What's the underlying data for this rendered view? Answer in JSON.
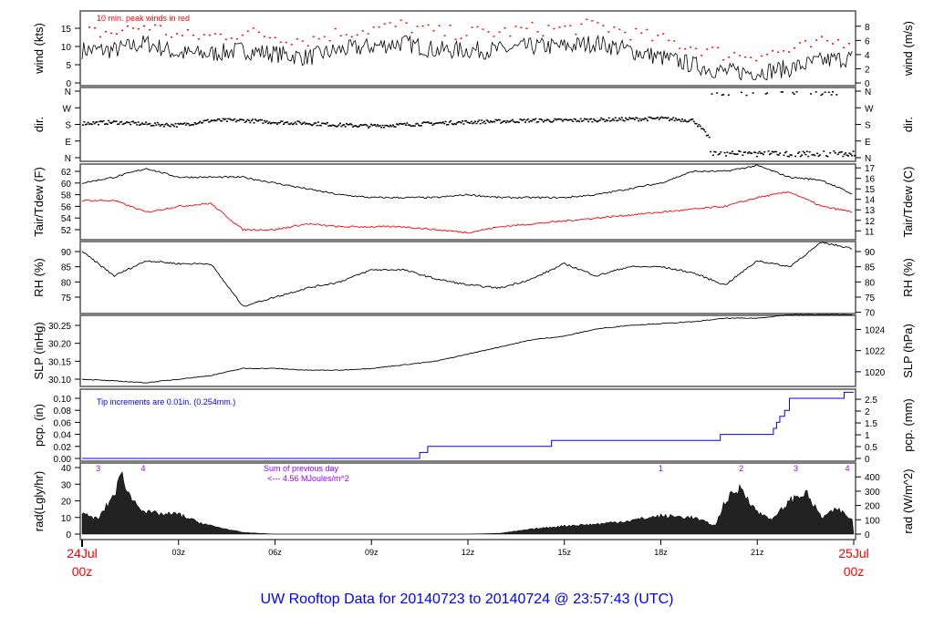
{
  "title": "UW Rooftop Data for 20140723  to  20140724 @ 23:57:43  (UTC)",
  "chart_data": [
    {
      "type": "line",
      "name": "wind",
      "ylabel": "wind (kts)",
      "ylabel_right": "wind (m/s)",
      "annotation": "10 min. peak winds in red",
      "ylim": [
        0,
        15
      ],
      "left_ticks": [
        0,
        5,
        10,
        15
      ],
      "right_ticks": [
        0,
        2,
        4,
        6,
        8
      ],
      "hours": [
        0,
        1,
        2,
        3,
        4,
        5,
        6,
        7,
        8,
        9,
        10,
        11,
        12,
        13,
        14,
        15,
        16,
        17,
        18,
        19,
        20,
        21,
        22,
        23,
        24
      ],
      "values": [
        9,
        9,
        11,
        8,
        8,
        9,
        8,
        7,
        9,
        10,
        11,
        9,
        9,
        9,
        10,
        10,
        11,
        9,
        7,
        5,
        3,
        3,
        4,
        6,
        7
      ],
      "peak_color": "#ff0000",
      "line_color": "#000000"
    },
    {
      "type": "scatter",
      "name": "dir",
      "ylabel": "dir.",
      "ylabel_right": "dir.",
      "ylim": [
        0,
        360
      ],
      "left_ticks": [
        "N",
        "E",
        "S",
        "W",
        "N"
      ],
      "right_ticks": [
        "N",
        "E",
        "S",
        "W",
        "N"
      ],
      "hours": [
        0,
        1,
        2,
        3,
        4,
        5,
        6,
        7,
        8,
        9,
        10,
        11,
        12,
        13,
        14,
        15,
        16,
        17,
        18,
        19,
        20,
        21,
        22,
        23,
        24
      ],
      "values": [
        190,
        195,
        185,
        180,
        205,
        205,
        195,
        190,
        180,
        175,
        182,
        190,
        196,
        200,
        205,
        205,
        208,
        212,
        215,
        205,
        15,
        355,
        25,
        12,
        8
      ]
    },
    {
      "type": "line",
      "name": "temp",
      "ylabel": "Tair/Tdew (F)",
      "ylabel_right": "Tair/Tdew (C)",
      "ylim": [
        52,
        62
      ],
      "left_ticks": [
        52,
        54,
        56,
        58,
        60,
        62
      ],
      "right_ticks": [
        11,
        12,
        13,
        14,
        15,
        16,
        17
      ],
      "hours": [
        0,
        1,
        2,
        3,
        4,
        5,
        6,
        7,
        8,
        9,
        10,
        11,
        12,
        13,
        14,
        15,
        16,
        17,
        18,
        19,
        20,
        21,
        22,
        23,
        24
      ],
      "series": [
        {
          "name": "Tair",
          "color": "#000000",
          "values": [
            60,
            61,
            62.5,
            61,
            61,
            61,
            60,
            59,
            58,
            57.5,
            57.5,
            57.5,
            58,
            57.5,
            57.5,
            57.5,
            58,
            59,
            60,
            62,
            62,
            63,
            61,
            60.5,
            58
          ]
        },
        {
          "name": "Tdew",
          "color": "#ff0000",
          "values": [
            57,
            57,
            55,
            56,
            56.5,
            52,
            52,
            53,
            52.5,
            52.5,
            52.5,
            52,
            51.5,
            52.5,
            53,
            53.5,
            54,
            54.5,
            55,
            55.5,
            56,
            57.5,
            58.5,
            56,
            55
          ]
        }
      ]
    },
    {
      "type": "line",
      "name": "rh",
      "ylabel": "RH (%)",
      "ylabel_right": "RH (%)",
      "ylim": [
        70,
        90
      ],
      "left_ticks": [
        75,
        80,
        85,
        90
      ],
      "right_ticks": [
        70,
        75,
        80,
        85,
        90
      ],
      "hours": [
        0,
        1,
        2,
        3,
        4,
        5,
        6,
        7,
        8,
        9,
        10,
        11,
        12,
        13,
        14,
        15,
        16,
        17,
        18,
        19,
        20,
        21,
        22,
        23,
        24
      ],
      "values": [
        90,
        82,
        87,
        86,
        86,
        72,
        75,
        78,
        80,
        84,
        84,
        81,
        79,
        78,
        81,
        86,
        82,
        85,
        85,
        83,
        79,
        87,
        85,
        93,
        91
      ]
    },
    {
      "type": "line",
      "name": "slp",
      "ylabel": "SLP (inHg)",
      "ylabel_right": "SLP (hPa)",
      "ylim": [
        30.1,
        30.25
      ],
      "left_ticks": [
        "30.10",
        "30.15",
        "30.20",
        "30.25"
      ],
      "right_ticks": [
        1020,
        1022,
        1024
      ],
      "hours": [
        0,
        1,
        2,
        3,
        4,
        5,
        6,
        7,
        8,
        9,
        10,
        11,
        12,
        13,
        14,
        15,
        16,
        17,
        18,
        19,
        20,
        21,
        22,
        23,
        24
      ],
      "values": [
        30.1,
        30.095,
        30.09,
        30.1,
        30.11,
        30.13,
        30.13,
        30.125,
        30.125,
        30.13,
        30.14,
        30.15,
        30.17,
        30.19,
        30.21,
        30.22,
        30.24,
        30.25,
        30.255,
        30.26,
        30.27,
        30.27,
        30.28,
        30.28,
        30.28
      ]
    },
    {
      "type": "line",
      "name": "pcp",
      "ylabel": "pcp. (in)",
      "ylabel_right": "pcp. (mm)",
      "annotation": "Tip increments are 0.01in. (0.254mm.)",
      "ylim": [
        0,
        0.1
      ],
      "left_ticks": [
        "0.00",
        "0.02",
        "0.04",
        "0.06",
        "0.08",
        "0.10"
      ],
      "right_ticks": [
        0,
        0.5,
        1,
        1.5,
        2,
        2.5
      ],
      "steps": [
        [
          0,
          0
        ],
        [
          10.5,
          0.01
        ],
        [
          10.75,
          0.02
        ],
        [
          14.6,
          0.03
        ],
        [
          19.85,
          0.04
        ],
        [
          21.5,
          0.05
        ],
        [
          21.6,
          0.06
        ],
        [
          21.7,
          0.07
        ],
        [
          21.85,
          0.08
        ],
        [
          22.0,
          0.1
        ],
        [
          23.7,
          0.11
        ],
        [
          24,
          0.11
        ]
      ],
      "color": "#0000ff"
    },
    {
      "type": "area",
      "name": "rad",
      "ylabel": "rad(Lgly/hr)",
      "ylabel_right": "rad (W/m^2)",
      "ylim": [
        0,
        40
      ],
      "left_ticks": [
        0,
        10,
        20,
        30,
        40
      ],
      "right_ticks": [
        0,
        100,
        200,
        300,
        400
      ],
      "hours": [
        0,
        0.5,
        1,
        1.25,
        1.5,
        2,
        2.5,
        3,
        3.5,
        4,
        5,
        6,
        8,
        10,
        12,
        13,
        14,
        15,
        16,
        17,
        18,
        19,
        19.7,
        20,
        20.5,
        21,
        21.5,
        22,
        22.5,
        23,
        23.5,
        24
      ],
      "values": [
        12,
        9,
        24,
        36,
        22,
        13,
        12,
        12,
        8,
        5,
        1,
        0,
        0,
        0,
        0,
        0.5,
        3,
        5,
        6,
        8,
        11,
        10,
        5,
        20,
        28,
        13,
        9,
        20,
        25,
        10,
        15,
        8
      ],
      "top_labels": [
        {
          "hour": 0.5,
          "text": "3"
        },
        {
          "hour": 1.9,
          "text": "4"
        },
        {
          "hour": 18,
          "text": "1"
        },
        {
          "hour": 20.5,
          "text": "2"
        },
        {
          "hour": 22.2,
          "text": "3"
        },
        {
          "hour": 23.8,
          "text": "4"
        }
      ],
      "sum_text": [
        "Sum of previous day",
        "<--- 4.56 MJoules/m^2"
      ]
    },
    {
      "type": "axis",
      "name": "x-axis",
      "ticks": [
        {
          "hour": 3,
          "label": "03z"
        },
        {
          "hour": 6,
          "label": "06z"
        },
        {
          "hour": 9,
          "label": "09z"
        },
        {
          "hour": 12,
          "label": "12z"
        },
        {
          "hour": 15,
          "label": "15z"
        },
        {
          "hour": 18,
          "label": "18z"
        },
        {
          "hour": 21,
          "label": "21z"
        }
      ],
      "start": [
        "24Jul",
        "00z"
      ],
      "end": [
        "25Jul",
        "00z"
      ],
      "date_color": "#ff0000"
    }
  ]
}
